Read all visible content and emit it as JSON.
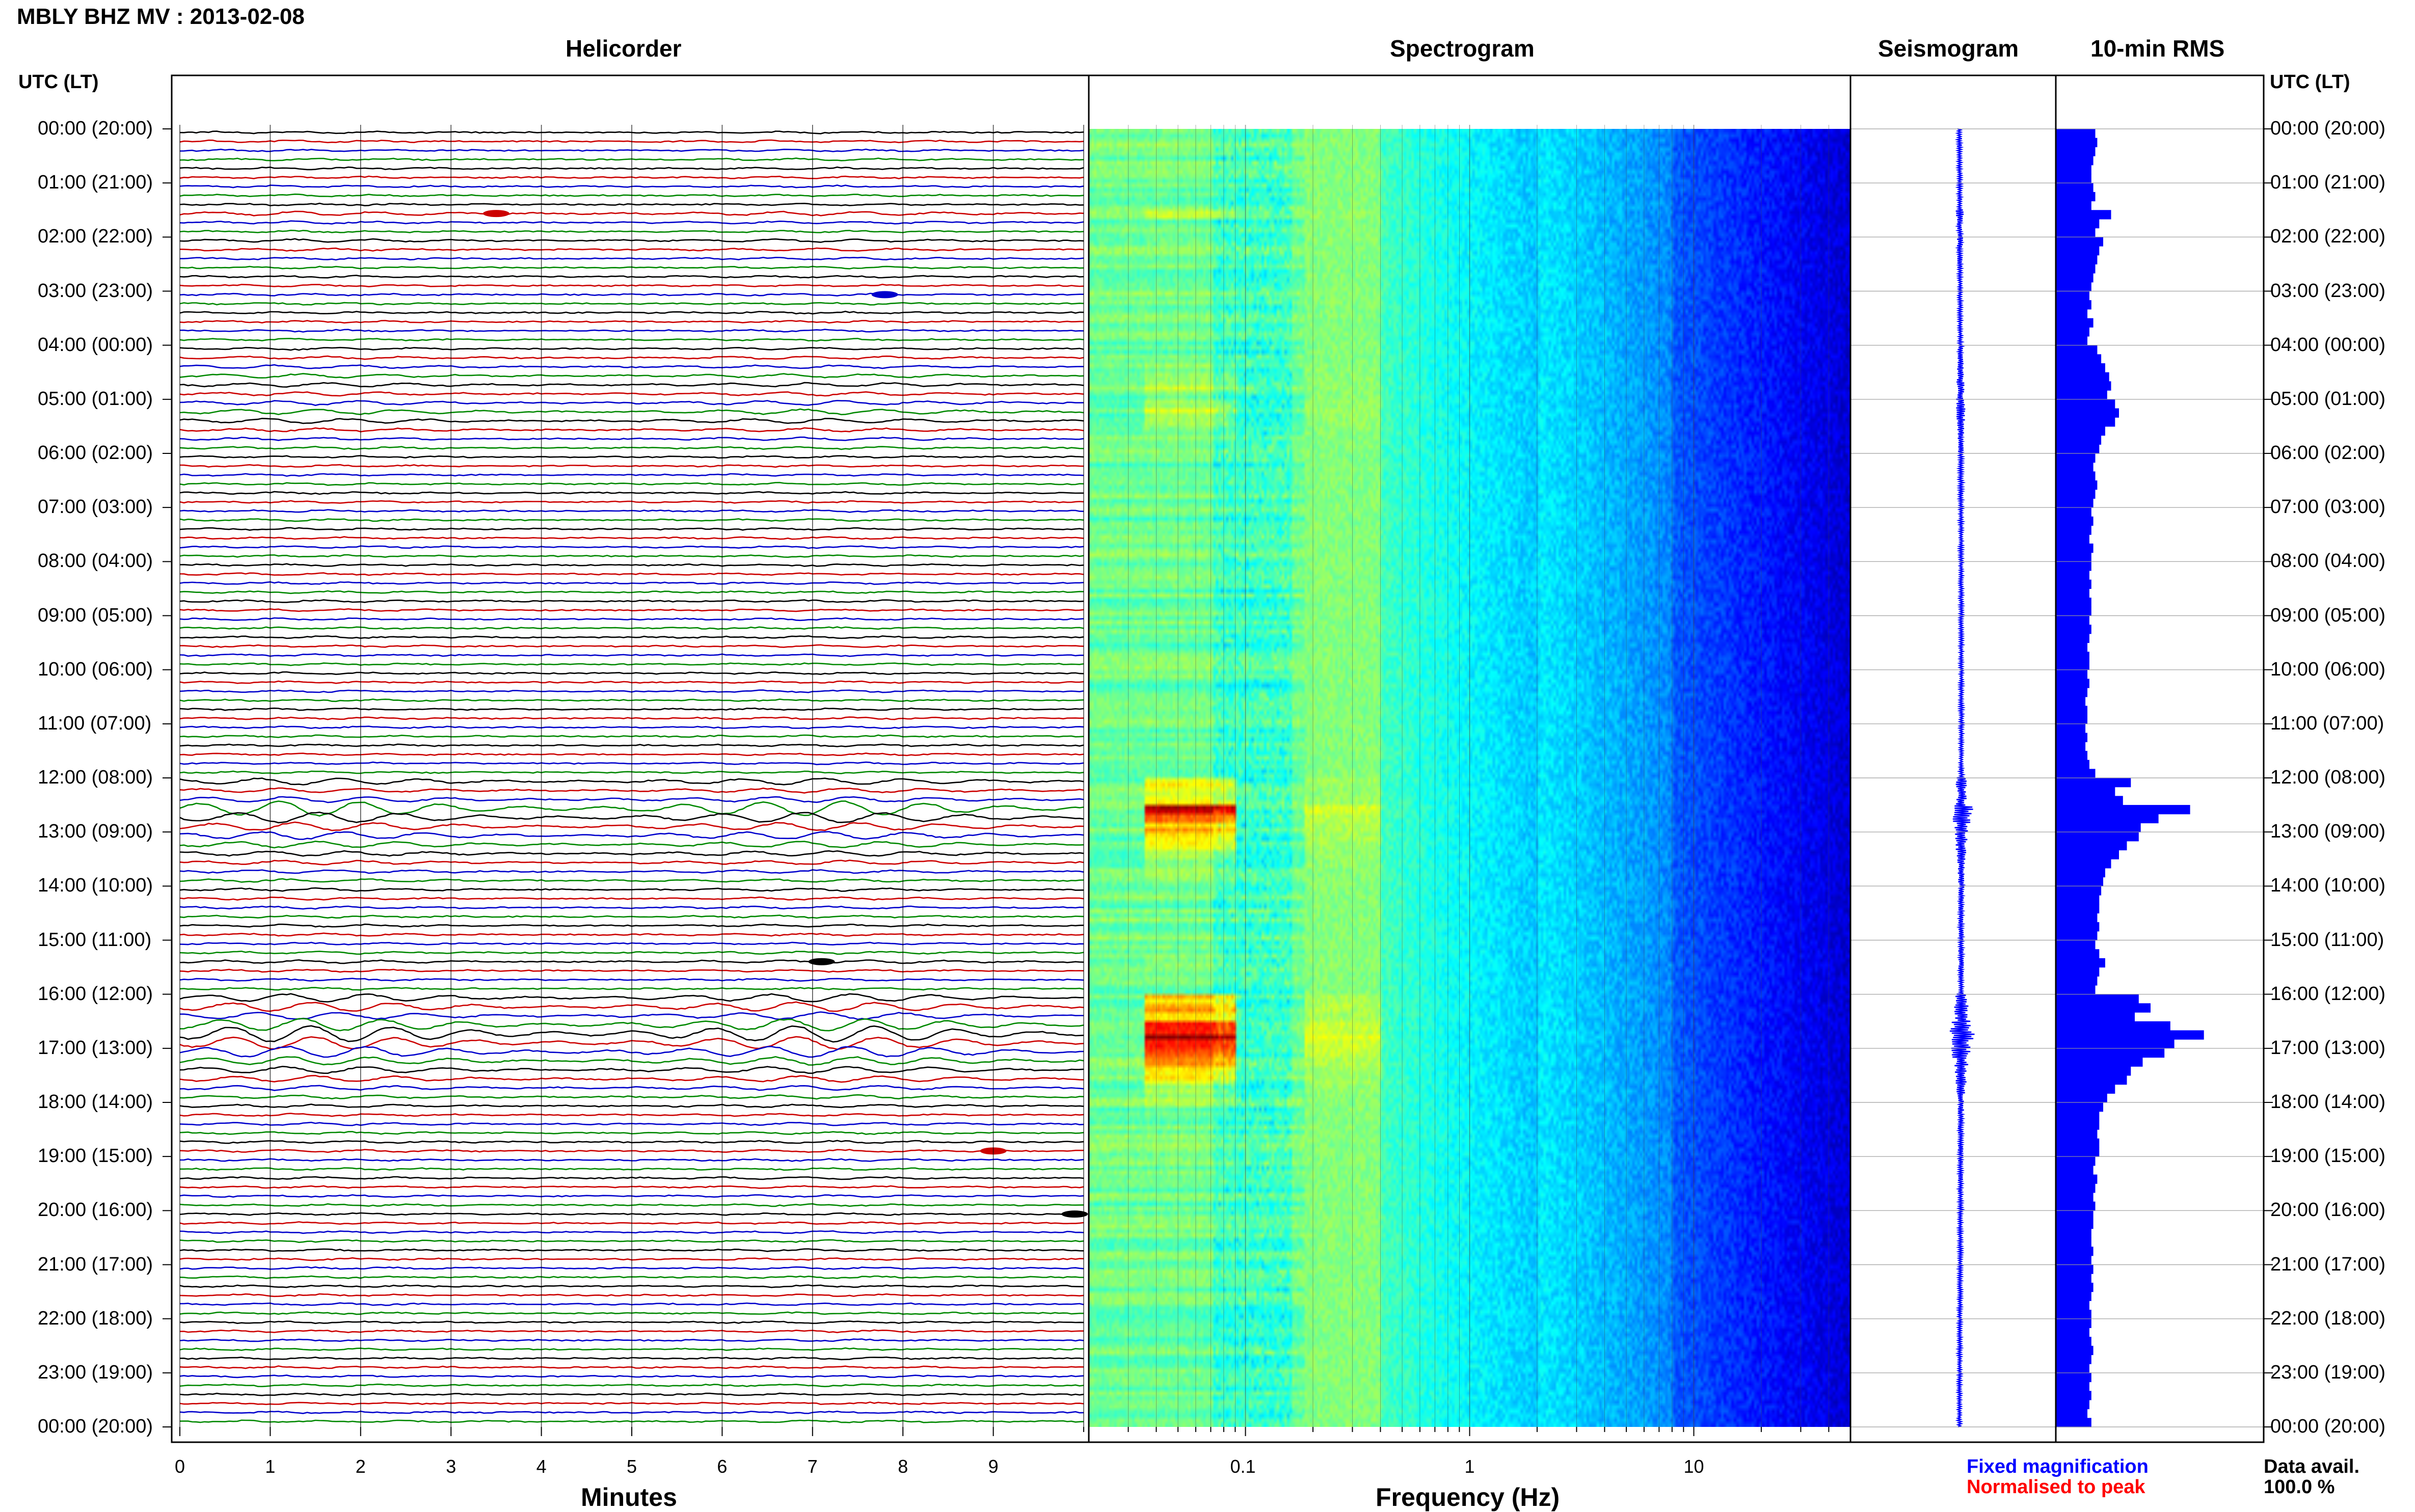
{
  "header": {
    "title": "MBLY BHZ MV : 2013-02-08",
    "utc_lt_left": "UTC (LT)",
    "utc_lt_right": "UTC (LT)"
  },
  "panels": {
    "helicorder": "Helicorder",
    "spectrogram": "Spectrogram",
    "seismogram": "Seismogram",
    "rms": "10-min RMS"
  },
  "time_labels": [
    "00:00 (20:00)",
    "01:00 (21:00)",
    "02:00 (22:00)",
    "03:00 (23:00)",
    "04:00 (00:00)",
    "05:00 (01:00)",
    "06:00 (02:00)",
    "07:00 (03:00)",
    "08:00 (04:00)",
    "09:00 (05:00)",
    "10:00 (06:00)",
    "11:00 (07:00)",
    "12:00 (08:00)",
    "13:00 (09:00)",
    "14:00 (10:00)",
    "15:00 (11:00)",
    "16:00 (12:00)",
    "17:00 (13:00)",
    "18:00 (14:00)",
    "19:00 (15:00)",
    "20:00 (16:00)",
    "21:00 (17:00)",
    "22:00 (18:00)",
    "23:00 (19:00)",
    "00:00 (20:00)"
  ],
  "x_axes": {
    "helicorder_label": "Minutes",
    "helicorder_ticks": [
      "0",
      "1",
      "2",
      "3",
      "4",
      "5",
      "6",
      "7",
      "8",
      "9"
    ],
    "spectrogram_label": "Frequency (Hz)",
    "spectrogram_ticks": [
      "0.1",
      "1",
      "10"
    ]
  },
  "legend": {
    "fixed": "Fixed magnification",
    "normalised": "Normalised to peak",
    "fixed_color": "#0000ff",
    "normalised_color": "#ff0000"
  },
  "data_avail": {
    "label": "Data avail.",
    "value": "100.0 %"
  },
  "colors": {
    "trace_cycle": [
      "#000000",
      "#cc0000",
      "#0000cc",
      "#008800"
    ],
    "rms_fill": "#0000ff",
    "seismo": "#0000ff",
    "spectro_low": "#00007f",
    "spectro_high": "#ffff00"
  },
  "chart_data": {
    "type": "heatmap",
    "station": "MBLY BHZ MV",
    "date": "2013-02-08",
    "helicorder": {
      "x_unit": "Minutes",
      "x_range": [
        0,
        10
      ],
      "lines_per_hour": 6,
      "trace_minutes": 10,
      "events": [
        {
          "time_utc": "01:30",
          "minute": 3.5
        },
        {
          "time_utc": "03:00",
          "minute": 7.8
        },
        {
          "time_utc": "15:20",
          "minute": 7.1
        },
        {
          "time_utc": "18:50",
          "minute": 9.0
        },
        {
          "time_utc": "20:00",
          "minute": 9.9
        }
      ]
    },
    "spectrogram": {
      "x_unit": "Hz",
      "x_scale": "log",
      "x_range": [
        0.02,
        50
      ],
      "peak_hz": 0.06,
      "high_energy_periods_utc": [
        [
          "12:20",
          "13:40"
        ],
        [
          "16:20",
          "18:00"
        ]
      ]
    },
    "rms_10min": {
      "x_unit": "relative amplitude",
      "x_range": [
        0,
        1
      ],
      "values": [
        0.2,
        0.21,
        0.2,
        0.19,
        0.18,
        0.18,
        0.19,
        0.2,
        0.18,
        0.28,
        0.22,
        0.2,
        0.24,
        0.22,
        0.21,
        0.2,
        0.19,
        0.18,
        0.17,
        0.18,
        0.16,
        0.19,
        0.17,
        0.16,
        0.21,
        0.23,
        0.25,
        0.27,
        0.28,
        0.26,
        0.3,
        0.32,
        0.3,
        0.25,
        0.23,
        0.22,
        0.2,
        0.19,
        0.2,
        0.21,
        0.2,
        0.19,
        0.18,
        0.19,
        0.18,
        0.17,
        0.19,
        0.18,
        0.18,
        0.17,
        0.18,
        0.17,
        0.18,
        0.18,
        0.17,
        0.18,
        0.17,
        0.16,
        0.17,
        0.17,
        0.16,
        0.17,
        0.16,
        0.15,
        0.16,
        0.16,
        0.15,
        0.16,
        0.15,
        0.16,
        0.17,
        0.2,
        0.38,
        0.3,
        0.34,
        0.68,
        0.52,
        0.43,
        0.42,
        0.36,
        0.32,
        0.28,
        0.25,
        0.24,
        0.23,
        0.22,
        0.22,
        0.21,
        0.22,
        0.21,
        0.2,
        0.22,
        0.25,
        0.22,
        0.21,
        0.2,
        0.42,
        0.48,
        0.4,
        0.58,
        0.75,
        0.6,
        0.55,
        0.44,
        0.38,
        0.36,
        0.3,
        0.26,
        0.24,
        0.22,
        0.22,
        0.21,
        0.22,
        0.22,
        0.2,
        0.19,
        0.21,
        0.2,
        0.19,
        0.2,
        0.19,
        0.19,
        0.18,
        0.18,
        0.19,
        0.18,
        0.19,
        0.18,
        0.19,
        0.18,
        0.17,
        0.18,
        0.18,
        0.17,
        0.18,
        0.19,
        0.18,
        0.17,
        0.18,
        0.17,
        0.18,
        0.17,
        0.16,
        0.18
      ]
    }
  }
}
